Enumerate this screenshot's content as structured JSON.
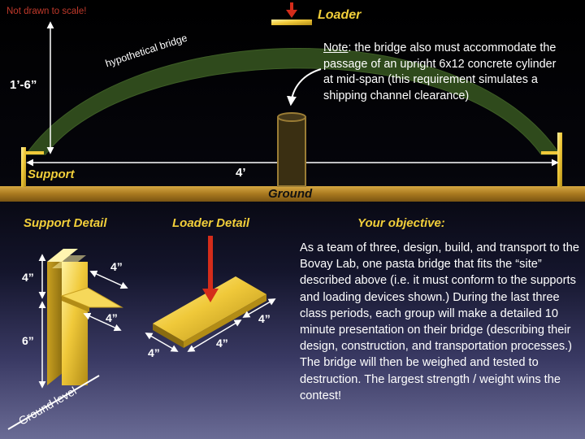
{
  "top": {
    "scale_note": "Not drawn to scale!",
    "loader_label": "Loader",
    "bridge_label": "hypothetical bridge",
    "height_label": "1’-6”",
    "note_label": "Note",
    "note_body": ": the bridge also must accommodate the passage of an upright 6x12 concrete cylinder at mid-span (this requirement simulates a shipping channel clearance)",
    "support_label": "Support",
    "span_label": "4’",
    "ground_label": "Ground"
  },
  "support_detail": {
    "title": "Support Detail",
    "height_top": "4”",
    "height_bottom": "6”",
    "depth_top": "4”",
    "depth_bottom": "4”",
    "ground_level": "Ground level"
  },
  "loader_detail": {
    "title": "Loader Detail",
    "dim_left": "4”",
    "dim_mid": "4”",
    "dim_right": "4”"
  },
  "objective": {
    "title": "Your objective:",
    "body": "As a team of three, design, build, and transport to the Bovay Lab, one  pasta bridge that fits the “site” described above (i.e. it must conform to the supports and loading devices shown.) During the last three class periods, each group will make a detailed 10 minute presentation on their bridge (describing their design, construction, and transportation processes.) The bridge will then be weighed and tested to destruction. The largest strength / weight wins the contest!"
  },
  "colors": {
    "gold": "#f2cf3a",
    "bridge_green": "#2f4a1c",
    "ground_brown": "#b08428",
    "arrow_red": "#d42c1a",
    "warning_red": "#c0392b"
  }
}
